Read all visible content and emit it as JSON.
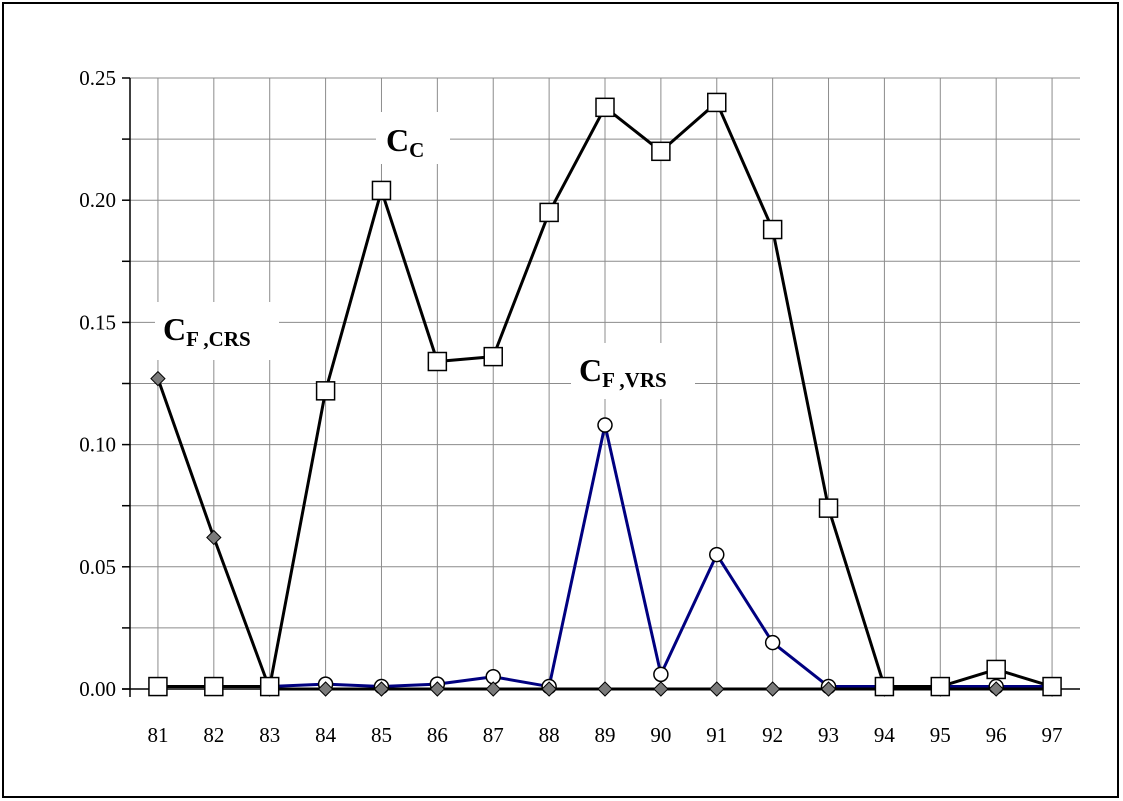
{
  "chart_data": {
    "type": "line",
    "categories": [
      "81",
      "82",
      "83",
      "84",
      "85",
      "86",
      "87",
      "88",
      "89",
      "90",
      "91",
      "92",
      "93",
      "94",
      "95",
      "96",
      "97"
    ],
    "ylim": [
      0,
      0.25
    ],
    "yticks": [
      "0.00",
      "0.05",
      "0.10",
      "0.15",
      "0.20",
      "0.25"
    ],
    "grid": true,
    "series": [
      {
        "name": "C_C",
        "marker": "square",
        "color": "#000000",
        "values": [
          0.001,
          0.001,
          0.001,
          0.122,
          0.204,
          0.134,
          0.136,
          0.195,
          0.238,
          0.22,
          0.24,
          0.188,
          0.074,
          0.001,
          0.001,
          0.008,
          0.001
        ]
      },
      {
        "name": "C_F,CRS",
        "marker": "diamond",
        "color": "#000000",
        "values": [
          0.127,
          0.062,
          0.0,
          0.0,
          0.0,
          0.0,
          0.0,
          0.0,
          0.0,
          0.0,
          0.0,
          0.0,
          0.0,
          0.0,
          0.0,
          0.0,
          0.0
        ]
      },
      {
        "name": "C_F,VRS",
        "marker": "circle",
        "color": "#000080",
        "values": [
          0.001,
          0.001,
          0.001,
          0.002,
          0.001,
          0.002,
          0.005,
          0.001,
          0.108,
          0.006,
          0.055,
          0.019,
          0.001,
          0.001,
          0.001,
          0.001,
          0.001
        ]
      }
    ],
    "annotations": [
      {
        "id": "cc",
        "main": "C",
        "sub": "C"
      },
      {
        "id": "cfcrs",
        "main": "C",
        "sub": "F ,CRS"
      },
      {
        "id": "cfvrs",
        "main": "C",
        "sub": "F ,VRS"
      }
    ]
  }
}
